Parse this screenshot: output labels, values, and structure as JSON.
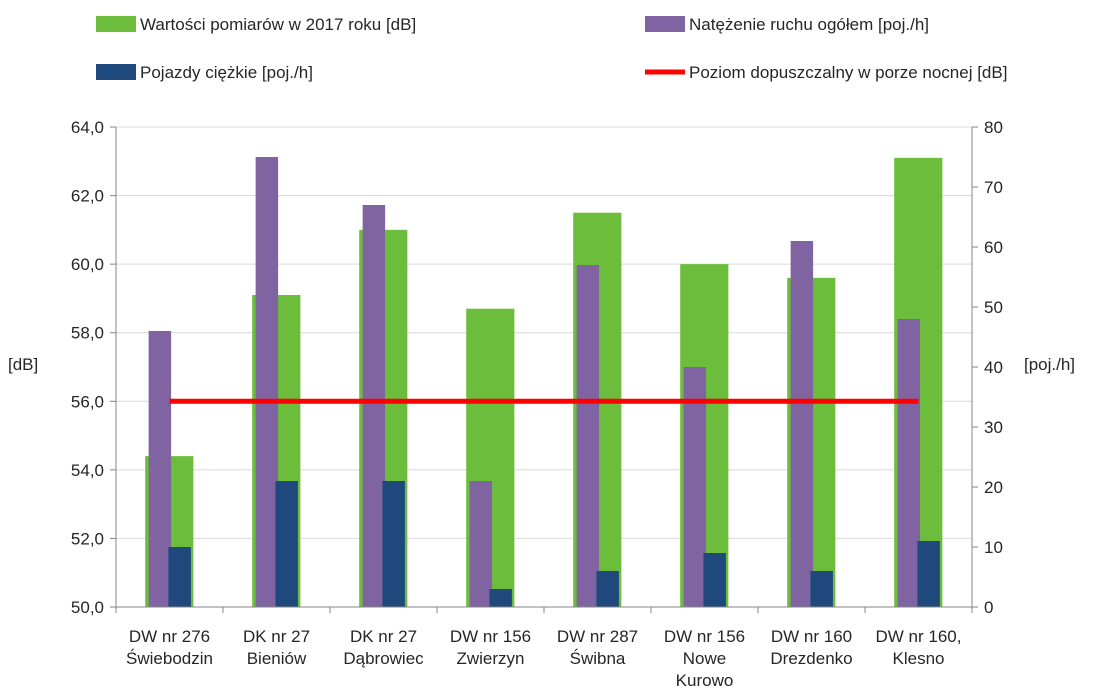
{
  "chart_data": {
    "type": "bar",
    "categories": [
      [
        "DW nr 276",
        "Świebodzin"
      ],
      [
        "DK nr 27",
        "Bieniów"
      ],
      [
        "DK nr 27",
        "Dąbrowiec"
      ],
      [
        "DW nr 156",
        "Zwierzyn"
      ],
      [
        "DW nr 287",
        "Świbna"
      ],
      [
        "DW nr 156",
        "Nowe",
        "Kurowo"
      ],
      [
        "DW nr 160",
        "Drezdenko"
      ],
      [
        "DW nr 160,",
        "Klesno"
      ]
    ],
    "series": [
      {
        "name": "Wartości pomiarów w 2017 roku [dB]",
        "axis": "left",
        "kind": "bar",
        "color": "#6cbd3c",
        "values": [
          54.4,
          59.1,
          61.0,
          58.7,
          61.5,
          60.0,
          59.6,
          63.1
        ]
      },
      {
        "name": "Natężenie ruchu ogółem [poj./h]",
        "axis": "right",
        "kind": "bar",
        "color": "#8064a2",
        "values": [
          46,
          75,
          67,
          21,
          57,
          40,
          61,
          48
        ]
      },
      {
        "name": "Pojazdy ciężkie [poj./h]",
        "axis": "right",
        "kind": "bar",
        "color": "#1f497d",
        "values": [
          10,
          21,
          21,
          3,
          6,
          9,
          6,
          11
        ]
      },
      {
        "name": "Poziom dopuszczalny w porze nocnej [dB]",
        "axis": "left",
        "kind": "line",
        "color": "#ff0000",
        "values": [
          56,
          56,
          56,
          56,
          56,
          56,
          56,
          56
        ]
      }
    ],
    "ylabel": "[dB]",
    "y2label": "[poj./h]",
    "ylim": [
      50,
      64
    ],
    "y2lim": [
      0,
      80
    ],
    "yticks": [
      "50,0",
      "52,0",
      "54,0",
      "56,0",
      "58,0",
      "60,0",
      "62,0",
      "64,0"
    ],
    "y2ticks": [
      "0",
      "10",
      "20",
      "30",
      "40",
      "50",
      "60",
      "70",
      "80"
    ],
    "grid": true,
    "legend_position": "top"
  }
}
